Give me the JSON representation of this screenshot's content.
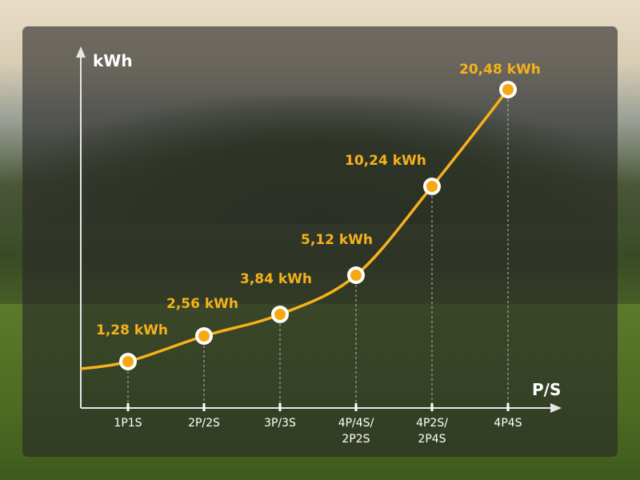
{
  "chart_data": {
    "type": "line",
    "xlabel": "P/S",
    "ylabel": "kWh",
    "categories": [
      "1P1S",
      "2P/2S",
      "3P/3S",
      "4P/4S/\n2P2S",
      "4P2S/\n2P4S",
      "4P4S"
    ],
    "values": [
      1.28,
      2.56,
      3.84,
      5.12,
      10.24,
      20.48
    ],
    "data_labels": [
      "1,28 kWh",
      "2,56 kWh",
      "3,84 kWh",
      "5,12 kWh",
      "10,24 kWh",
      "20,48 kWh"
    ],
    "grid": false,
    "colors": {
      "line": "#f5b21b",
      "point": "#f5a812",
      "label": "#f5b21b",
      "axis": "#ffffff"
    }
  }
}
